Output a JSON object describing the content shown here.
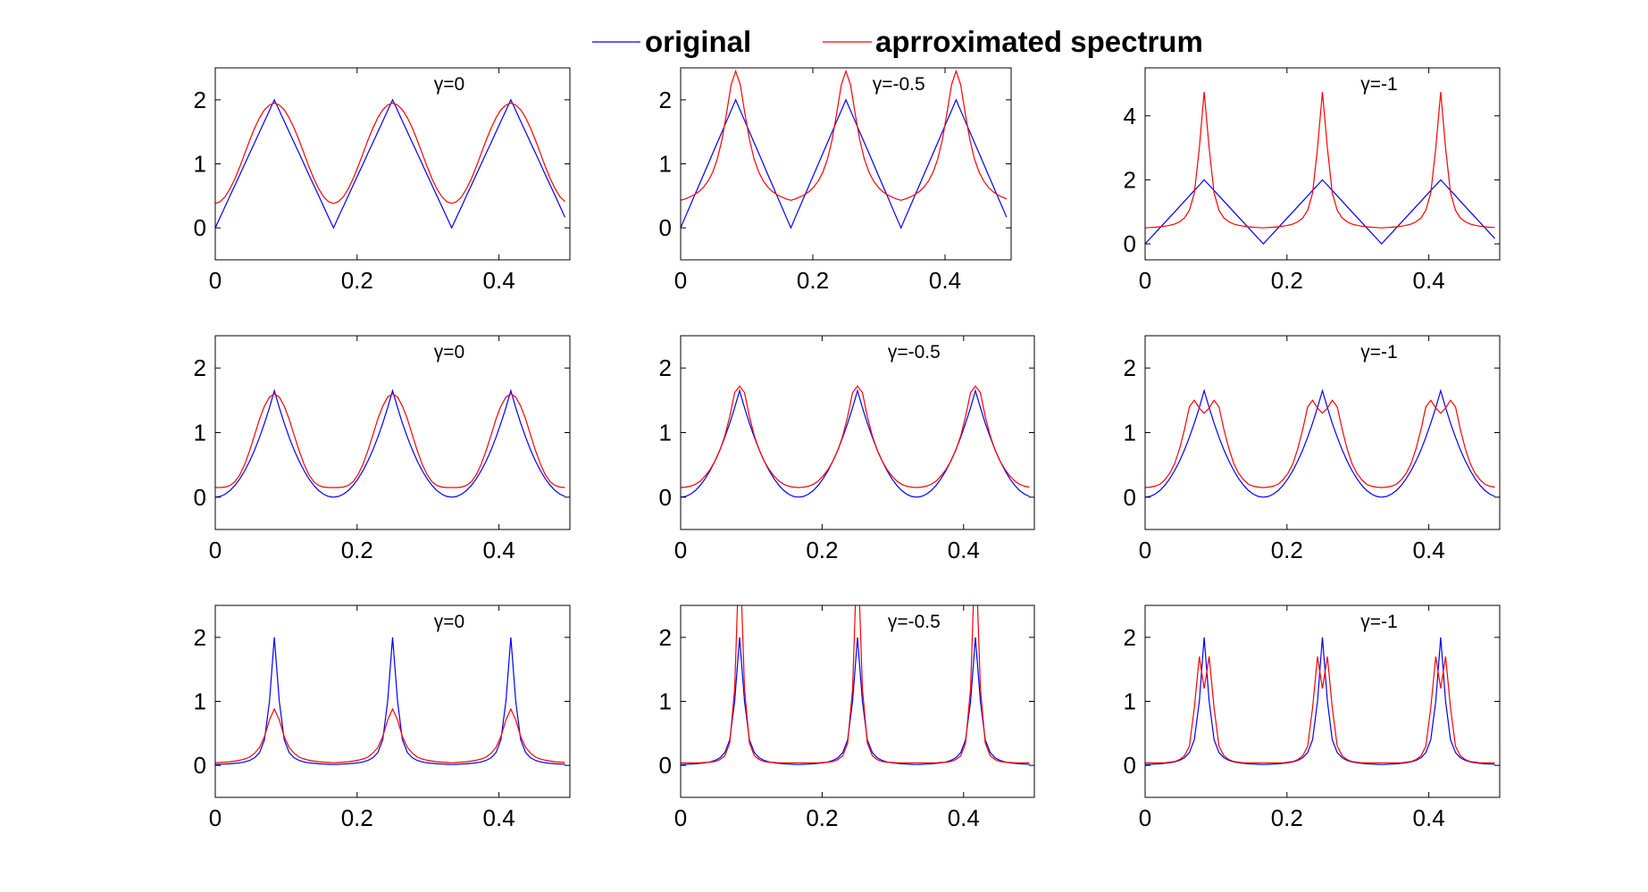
{
  "chart_data": [
    {
      "type": "line",
      "layout": "3x3 grid of subplots",
      "legend": {
        "placement": "top-center",
        "entries": [
          {
            "name": "original",
            "color": "#0000ff"
          },
          {
            "name": "aprroximated spectrum",
            "color": "#ff0000"
          }
        ]
      },
      "xlim": [
        0,
        0.5
      ],
      "xticks": [
        0,
        0.2,
        0.4
      ],
      "xtick_labels": [
        "0",
        "0.2",
        "0.4"
      ],
      "grid": false,
      "period": 0.1667,
      "period_x": [
        0,
        0.0069,
        0.0139,
        0.0208,
        0.0278,
        0.0347,
        0.0417,
        0.0486,
        0.0556,
        0.0625,
        0.0694,
        0.0764,
        0.0833,
        0.0903,
        0.0972,
        0.1042,
        0.1111,
        0.1181,
        0.125,
        0.1319,
        0.1389,
        0.1458,
        0.1528,
        0.1597,
        0.1667
      ],
      "panels": [
        {
          "row": 1,
          "col": 1,
          "annotation": "γ=0",
          "ylim": [
            -0.5,
            2.5
          ],
          "yticks": [
            0,
            1,
            2
          ],
          "ytick_labels": [
            "0",
            "1",
            "2"
          ],
          "series": [
            {
              "name": "original",
              "values": [
                0,
                0.167,
                0.333,
                0.5,
                0.667,
                0.833,
                1,
                1.167,
                1.333,
                1.5,
                1.667,
                1.833,
                2,
                1.833,
                1.667,
                1.5,
                1.333,
                1.167,
                1,
                0.833,
                0.667,
                0.5,
                0.333,
                0.167,
                0
              ]
            },
            {
              "name": "aprroximated spectrum",
              "values": [
                0.38,
                0.41,
                0.485,
                0.61,
                0.77,
                0.96,
                1.165,
                1.37,
                1.56,
                1.72,
                1.845,
                1.92,
                1.95,
                1.92,
                1.845,
                1.72,
                1.56,
                1.37,
                1.165,
                0.96,
                0.77,
                0.61,
                0.485,
                0.41,
                0.38
              ]
            }
          ]
        },
        {
          "row": 1,
          "col": 2,
          "annotation": "γ=-0.5",
          "ylim": [
            -0.5,
            2.5
          ],
          "yticks": [
            0,
            1,
            2
          ],
          "ytick_labels": [
            "0",
            "1",
            "2"
          ],
          "series": [
            {
              "name": "original",
              "values": [
                0,
                0.167,
                0.333,
                0.5,
                0.667,
                0.833,
                1,
                1.167,
                1.333,
                1.5,
                1.667,
                1.833,
                2,
                1.833,
                1.667,
                1.5,
                1.333,
                1.167,
                1,
                0.833,
                0.667,
                0.5,
                0.333,
                0.167,
                0
              ]
            },
            {
              "name": "aprroximated spectrum",
              "values": [
                0.43,
                0.452,
                0.482,
                0.519,
                0.568,
                0.637,
                0.733,
                0.873,
                1.077,
                1.378,
                1.79,
                2.236,
                2.45,
                2.236,
                1.79,
                1.378,
                1.077,
                0.873,
                0.733,
                0.637,
                0.568,
                0.519,
                0.482,
                0.452,
                0.43
              ]
            }
          ]
        },
        {
          "row": 1,
          "col": 3,
          "annotation": "γ=-1",
          "ylim": [
            -0.5,
            5.5
          ],
          "yticks": [
            0,
            2,
            4
          ],
          "ytick_labels": [
            "0",
            "2",
            "4"
          ],
          "series": [
            {
              "name": "original",
              "values": [
                0,
                0.167,
                0.333,
                0.5,
                0.667,
                0.833,
                1,
                1.167,
                1.333,
                1.5,
                1.667,
                1.833,
                2,
                1.833,
                1.667,
                1.5,
                1.333,
                1.167,
                1,
                0.833,
                0.667,
                0.5,
                0.333,
                0.167,
                0
              ]
            },
            {
              "name": "aprroximated spectrum",
              "values": [
                0.5,
                0.509,
                0.519,
                0.533,
                0.552,
                0.58,
                0.62,
                0.69,
                0.81,
                1.05,
                1.59,
                2.99,
                4.75,
                2.99,
                1.59,
                1.05,
                0.81,
                0.69,
                0.62,
                0.58,
                0.552,
                0.533,
                0.519,
                0.509,
                0.5
              ]
            }
          ]
        },
        {
          "row": 2,
          "col": 1,
          "annotation": "γ=0",
          "ylim": [
            -0.5,
            2.5
          ],
          "yticks": [
            0,
            1,
            2
          ],
          "ytick_labels": [
            "0",
            "1",
            "2"
          ],
          "series": [
            {
              "name": "original",
              "values": [
                0,
                0.011,
                0.046,
                0.103,
                0.183,
                0.287,
                0.413,
                0.561,
                0.733,
                0.928,
                1.146,
                1.386,
                1.65,
                1.386,
                1.146,
                0.928,
                0.733,
                0.561,
                0.413,
                0.287,
                0.183,
                0.103,
                0.046,
                0.011,
                0
              ]
            },
            {
              "name": "aprroximated spectrum",
              "values": [
                0.15,
                0.15,
                0.157,
                0.181,
                0.24,
                0.35,
                0.513,
                0.724,
                0.966,
                1.21,
                1.41,
                1.55,
                1.6,
                1.55,
                1.41,
                1.21,
                0.966,
                0.724,
                0.513,
                0.35,
                0.24,
                0.181,
                0.157,
                0.15,
                0.15
              ]
            }
          ]
        },
        {
          "row": 2,
          "col": 2,
          "annotation": "γ=-0.5",
          "ylim": [
            -0.5,
            2.5
          ],
          "yticks": [
            0,
            1,
            2
          ],
          "ytick_labels": [
            "0",
            "1",
            "2"
          ],
          "series": [
            {
              "name": "original",
              "values": [
                0,
                0.011,
                0.046,
                0.103,
                0.183,
                0.287,
                0.413,
                0.561,
                0.733,
                0.928,
                1.146,
                1.386,
                1.65,
                1.386,
                1.146,
                0.928,
                0.733,
                0.561,
                0.413,
                0.287,
                0.183,
                0.103,
                0.046,
                0.011,
                0
              ]
            },
            {
              "name": "aprroximated spectrum",
              "values": [
                0.15,
                0.155,
                0.17,
                0.2,
                0.25,
                0.33,
                0.43,
                0.56,
                0.73,
                0.95,
                1.25,
                1.62,
                1.72,
                1.62,
                1.25,
                0.95,
                0.73,
                0.56,
                0.43,
                0.33,
                0.25,
                0.2,
                0.17,
                0.155,
                0.15
              ]
            }
          ]
        },
        {
          "row": 2,
          "col": 3,
          "annotation": "γ=-1",
          "ylim": [
            -0.5,
            2.5
          ],
          "yticks": [
            0,
            1,
            2
          ],
          "ytick_labels": [
            "0",
            "1",
            "2"
          ],
          "series": [
            {
              "name": "original",
              "values": [
                0,
                0.011,
                0.046,
                0.103,
                0.183,
                0.287,
                0.413,
                0.561,
                0.733,
                0.928,
                1.146,
                1.386,
                1.65,
                1.386,
                1.146,
                0.928,
                0.733,
                0.561,
                0.413,
                0.287,
                0.183,
                0.103,
                0.046,
                0.011,
                0
              ]
            },
            {
              "name": "aprroximated spectrum",
              "values": [
                0.15,
                0.155,
                0.17,
                0.2,
                0.27,
                0.37,
                0.52,
                0.75,
                1.05,
                1.4,
                1.5,
                1.38,
                1.3,
                1.38,
                1.5,
                1.4,
                1.05,
                0.75,
                0.52,
                0.37,
                0.27,
                0.2,
                0.17,
                0.155,
                0.15
              ]
            }
          ]
        },
        {
          "row": 3,
          "col": 1,
          "annotation": "γ=0",
          "ylim": [
            -0.5,
            2.5
          ],
          "yticks": [
            0,
            1,
            2
          ],
          "ytick_labels": [
            "0",
            "1",
            "2"
          ],
          "series": [
            {
              "name": "original",
              "values": [
                0.014,
                0.016,
                0.02,
                0.024,
                0.031,
                0.04,
                0.054,
                0.077,
                0.118,
                0.2,
                0.4,
                1.0,
                2,
                1.0,
                0.4,
                0.2,
                0.118,
                0.077,
                0.054,
                0.04,
                0.031,
                0.024,
                0.02,
                0.016,
                0.014
              ]
            },
            {
              "name": "aprroximated spectrum",
              "values": [
                0.04,
                0.045,
                0.05,
                0.057,
                0.066,
                0.08,
                0.1,
                0.13,
                0.19,
                0.28,
                0.45,
                0.71,
                0.88,
                0.71,
                0.45,
                0.28,
                0.19,
                0.13,
                0.1,
                0.08,
                0.066,
                0.057,
                0.05,
                0.045,
                0.04
              ]
            }
          ]
        },
        {
          "row": 3,
          "col": 2,
          "annotation": "γ=-0.5",
          "ylim": [
            -0.5,
            2.5
          ],
          "yticks": [
            0,
            1,
            2
          ],
          "ytick_labels": [
            "0",
            "1",
            "2"
          ],
          "series": [
            {
              "name": "original",
              "values": [
                0.014,
                0.016,
                0.02,
                0.024,
                0.031,
                0.04,
                0.054,
                0.077,
                0.118,
                0.2,
                0.4,
                1.0,
                2,
                1.0,
                0.4,
                0.2,
                0.118,
                0.077,
                0.054,
                0.04,
                0.031,
                0.024,
                0.02,
                0.016,
                0.014
              ]
            },
            {
              "name": "aprroximated spectrum",
              "values": [
                0.04,
                0.04,
                0.04,
                0.04,
                0.04,
                0.045,
                0.05,
                0.06,
                0.09,
                0.15,
                0.35,
                1.2,
                3.5,
                1.2,
                0.35,
                0.15,
                0.09,
                0.06,
                0.05,
                0.045,
                0.04,
                0.04,
                0.04,
                0.04,
                0.04
              ]
            }
          ]
        },
        {
          "row": 3,
          "col": 3,
          "annotation": "γ=-1",
          "ylim": [
            -0.5,
            2.5
          ],
          "yticks": [
            0,
            1,
            2
          ],
          "ytick_labels": [
            "0",
            "1",
            "2"
          ],
          "series": [
            {
              "name": "original",
              "values": [
                0.014,
                0.016,
                0.02,
                0.024,
                0.031,
                0.04,
                0.054,
                0.077,
                0.118,
                0.2,
                0.4,
                1.0,
                2,
                1.0,
                0.4,
                0.2,
                0.118,
                0.077,
                0.054,
                0.04,
                0.031,
                0.024,
                0.02,
                0.016,
                0.014
              ]
            },
            {
              "name": "aprroximated spectrum",
              "values": [
                0.04,
                0.04,
                0.04,
                0.04,
                0.04,
                0.05,
                0.06,
                0.09,
                0.15,
                0.3,
                0.9,
                1.7,
                1.2,
                1.7,
                0.9,
                0.3,
                0.15,
                0.09,
                0.06,
                0.05,
                0.04,
                0.04,
                0.04,
                0.04,
                0.04
              ]
            }
          ]
        }
      ]
    }
  ]
}
